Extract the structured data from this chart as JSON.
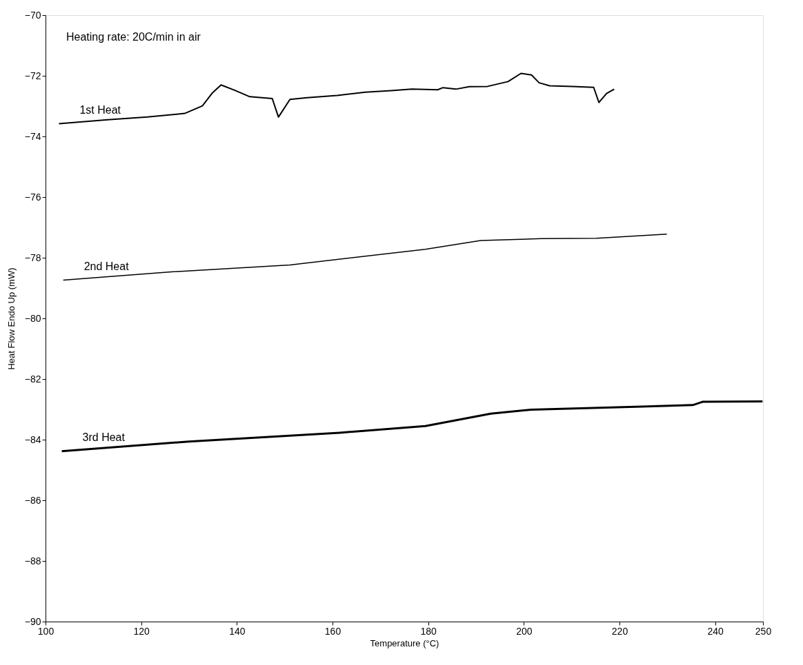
{
  "chart_data": {
    "type": "line",
    "xlabel": "Temperature (°C)",
    "ylabel": "Heat Flow Endo Up (mW)",
    "annotations": [
      "Heating rate: 20C/min in air"
    ],
    "xlim": [
      100,
      250
    ],
    "xticks": [
      100,
      120,
      140,
      160,
      180,
      200,
      220,
      240,
      250
    ],
    "ylim": [
      -90,
      -70
    ],
    "yticks": [
      -90,
      -88,
      -86,
      -84,
      -82,
      -80,
      -78,
      -76,
      -74,
      -72,
      -70
    ],
    "marker": "none",
    "line_style": "solid",
    "series": [
      {
        "name": "1st Heat",
        "color": "#000000",
        "x": [
          102.8,
          113.0,
          121.3,
          129.1,
          132.8,
          134.9,
          136.7,
          139.6,
          142.7,
          147.4,
          148.7,
          151.1,
          154.7,
          161.0,
          166.9,
          172.3,
          176.6,
          182.0,
          183.1,
          185.8,
          188.6,
          192.4,
          196.7,
          199.4,
          201.6,
          203.2,
          205.4,
          210.2,
          214.6,
          215.7,
          217.3,
          218.9
        ],
        "values": [
          -73.58,
          -73.45,
          -73.36,
          -73.24,
          -72.99,
          -72.56,
          -72.3,
          -72.48,
          -72.69,
          -72.75,
          -73.36,
          -72.78,
          -72.72,
          -72.65,
          -72.54,
          -72.49,
          -72.44,
          -72.46,
          -72.39,
          -72.44,
          -72.36,
          -72.35,
          -72.19,
          -71.92,
          -71.97,
          -72.23,
          -72.33,
          -72.35,
          -72.38,
          -72.88,
          -72.58,
          -72.44
        ]
      },
      {
        "name": "2nd Heat",
        "color": "#000000",
        "x": [
          103.7,
          125.8,
          151.1,
          179.4,
          191.0,
          203.7,
          215.2,
          229.9
        ],
        "values": [
          -78.74,
          -78.47,
          -78.24,
          -77.72,
          -77.43,
          -77.37,
          -77.36,
          -77.22
        ]
      },
      {
        "name": "3rd Heat",
        "color": "#000000",
        "x": [
          103.4,
          130.0,
          161.5,
          179.4,
          193.1,
          201.5,
          224.7,
          235.3,
          237.4,
          249.9
        ],
        "values": [
          -84.38,
          -84.06,
          -83.77,
          -83.55,
          -83.14,
          -83.01,
          -82.91,
          -82.86,
          -82.75,
          -82.74
        ]
      }
    ]
  }
}
